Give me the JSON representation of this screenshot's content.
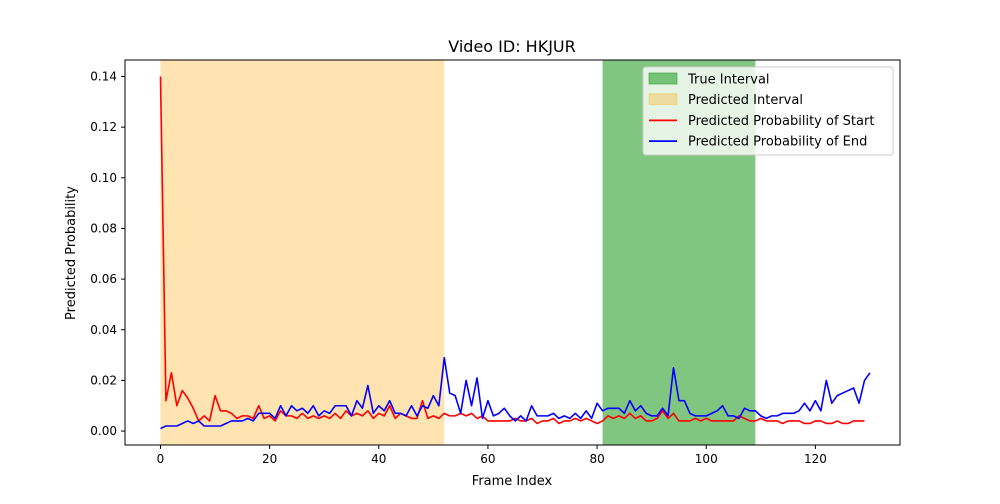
{
  "chart_data": {
    "type": "line",
    "title": "Video ID: HKJUR",
    "xlabel": "Frame Index",
    "ylabel": "Predicted Probability",
    "xlim": [
      -6.5,
      135.5
    ],
    "ylim": [
      -0.0055,
      0.1465
    ],
    "xticks": [
      0,
      20,
      40,
      60,
      80,
      100,
      120
    ],
    "yticks": [
      0.0,
      0.02,
      0.04,
      0.06,
      0.08,
      0.1,
      0.12,
      0.14
    ],
    "ytick_labels": [
      "0.00",
      "0.02",
      "0.04",
      "0.06",
      "0.08",
      "0.10",
      "0.12",
      "0.14"
    ],
    "grid": false,
    "legend_position": "top-right",
    "intervals": [
      {
        "name": "True Interval",
        "start": 81,
        "end": 109,
        "color": "#2ca02c",
        "opacity": 0.6
      },
      {
        "name": "Predicted Interval",
        "start": 0,
        "end": 52,
        "color": "#ffa500",
        "opacity": 0.3
      }
    ],
    "series": [
      {
        "name": "Predicted Probability of Start",
        "color": "#ff0000",
        "x_start": 0,
        "values": [
          0.14,
          0.012,
          0.023,
          0.01,
          0.016,
          0.013,
          0.009,
          0.004,
          0.006,
          0.004,
          0.014,
          0.008,
          0.008,
          0.007,
          0.005,
          0.006,
          0.006,
          0.005,
          0.01,
          0.005,
          0.006,
          0.004,
          0.008,
          0.006,
          0.006,
          0.005,
          0.007,
          0.005,
          0.006,
          0.005,
          0.006,
          0.005,
          0.007,
          0.005,
          0.008,
          0.006,
          0.007,
          0.006,
          0.008,
          0.005,
          0.007,
          0.006,
          0.01,
          0.005,
          0.007,
          0.006,
          0.005,
          0.005,
          0.012,
          0.005,
          0.006,
          0.005,
          0.007,
          0.006,
          0.006,
          0.007,
          0.006,
          0.007,
          0.005,
          0.006,
          0.004,
          0.004,
          0.004,
          0.004,
          0.004,
          0.005,
          0.004,
          0.004,
          0.005,
          0.003,
          0.004,
          0.004,
          0.005,
          0.003,
          0.004,
          0.004,
          0.005,
          0.004,
          0.005,
          0.004,
          0.003,
          0.004,
          0.006,
          0.005,
          0.006,
          0.005,
          0.007,
          0.005,
          0.006,
          0.004,
          0.004,
          0.005,
          0.008,
          0.005,
          0.007,
          0.004,
          0.004,
          0.004,
          0.005,
          0.004,
          0.005,
          0.004,
          0.004,
          0.004,
          0.004,
          0.004,
          0.006,
          0.005,
          0.004,
          0.004,
          0.005,
          0.004,
          0.004,
          0.004,
          0.003,
          0.004,
          0.004,
          0.004,
          0.003,
          0.003,
          0.004,
          0.004,
          0.003,
          0.003,
          0.004,
          0.003,
          0.003,
          0.004,
          0.004,
          0.004
        ]
      },
      {
        "name": "Predicted Probability of End",
        "color": "#0000ff",
        "x_start": 0,
        "values": [
          0.001,
          0.002,
          0.002,
          0.002,
          0.003,
          0.004,
          0.003,
          0.004,
          0.002,
          0.002,
          0.002,
          0.002,
          0.003,
          0.004,
          0.004,
          0.004,
          0.005,
          0.004,
          0.007,
          0.007,
          0.007,
          0.005,
          0.01,
          0.006,
          0.01,
          0.008,
          0.009,
          0.007,
          0.01,
          0.006,
          0.008,
          0.007,
          0.01,
          0.01,
          0.01,
          0.006,
          0.012,
          0.009,
          0.018,
          0.007,
          0.01,
          0.008,
          0.012,
          0.007,
          0.007,
          0.006,
          0.01,
          0.006,
          0.01,
          0.009,
          0.014,
          0.01,
          0.029,
          0.015,
          0.014,
          0.007,
          0.02,
          0.01,
          0.021,
          0.005,
          0.012,
          0.006,
          0.007,
          0.009,
          0.006,
          0.004,
          0.006,
          0.004,
          0.01,
          0.006,
          0.006,
          0.006,
          0.007,
          0.005,
          0.006,
          0.005,
          0.007,
          0.005,
          0.008,
          0.005,
          0.011,
          0.008,
          0.009,
          0.009,
          0.009,
          0.007,
          0.012,
          0.008,
          0.01,
          0.007,
          0.006,
          0.006,
          0.009,
          0.006,
          0.025,
          0.012,
          0.012,
          0.007,
          0.006,
          0.006,
          0.006,
          0.007,
          0.008,
          0.01,
          0.006,
          0.006,
          0.005,
          0.009,
          0.008,
          0.008,
          0.006,
          0.005,
          0.006,
          0.006,
          0.007,
          0.007,
          0.007,
          0.008,
          0.011,
          0.008,
          0.012,
          0.008,
          0.02,
          0.011,
          0.014,
          0.015,
          0.016,
          0.017,
          0.011,
          0.02,
          0.023
        ]
      }
    ]
  }
}
